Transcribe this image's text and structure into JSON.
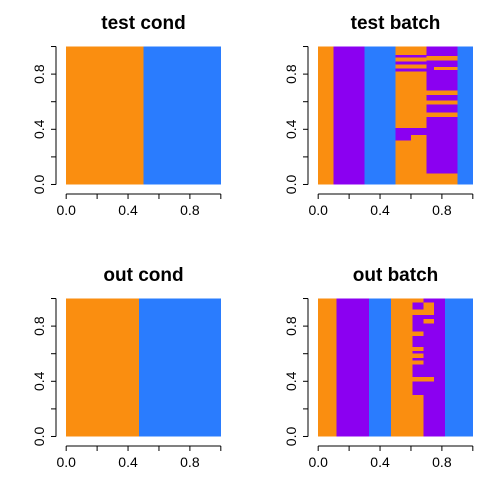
{
  "chart_data": [
    {
      "type": "heatmap",
      "title": "test cond",
      "xlim": [
        0,
        1
      ],
      "ylim": [
        0,
        1
      ],
      "x_ticks": [
        "0.0",
        "0.4",
        "0.8"
      ],
      "y_ticks": [
        "0.0",
        "0.4",
        "0.8"
      ],
      "colors": {
        "orange": "#fa8e10",
        "blue": "#2a7cfe"
      },
      "grid": "1 row x 2 column bands",
      "rects": [
        {
          "x": [
            0.0,
            0.5
          ],
          "y": [
            0.0,
            1.0
          ],
          "color": "orange"
        },
        {
          "x": [
            0.5,
            1.0
          ],
          "y": [
            0.0,
            1.0
          ],
          "color": "blue"
        }
      ]
    },
    {
      "type": "heatmap",
      "title": "test batch",
      "xlim": [
        0,
        1
      ],
      "ylim": [
        0,
        1
      ],
      "x_ticks": [
        "0.0",
        "0.4",
        "0.8"
      ],
      "y_ticks": [
        "0.0",
        "0.4",
        "0.8"
      ],
      "colors": {
        "orange": "#fa8e10",
        "purple": "#8b00f1",
        "blue": "#2a7cfe"
      },
      "rects": [
        {
          "x": [
            0.0,
            0.1
          ],
          "y": [
            0.0,
            1.0
          ],
          "color": "orange"
        },
        {
          "x": [
            0.1,
            0.3
          ],
          "y": [
            0.0,
            1.0
          ],
          "color": "purple"
        },
        {
          "x": [
            0.3,
            0.5
          ],
          "y": [
            0.0,
            1.0
          ],
          "color": "blue"
        },
        {
          "x": [
            0.5,
            0.7
          ],
          "y": [
            0.0,
            1.0
          ],
          "color": "orange"
        },
        {
          "x": [
            0.7,
            0.9
          ],
          "y": [
            0.0,
            1.0
          ],
          "color": "purple"
        },
        {
          "x": [
            0.9,
            1.0
          ],
          "y": [
            0.0,
            1.0
          ],
          "color": "blue"
        },
        {
          "x": [
            0.5,
            0.7
          ],
          "y": [
            0.92,
            0.94
          ],
          "color": "purple"
        },
        {
          "x": [
            0.5,
            0.7
          ],
          "y": [
            0.87,
            0.89
          ],
          "color": "purple"
        },
        {
          "x": [
            0.5,
            0.7
          ],
          "y": [
            0.82,
            0.84
          ],
          "color": "purple"
        },
        {
          "x": [
            0.5,
            0.7
          ],
          "y": [
            0.36,
            0.41
          ],
          "color": "purple"
        },
        {
          "x": [
            0.5,
            0.6
          ],
          "y": [
            0.32,
            0.36
          ],
          "color": "purple"
        },
        {
          "x": [
            0.7,
            0.9
          ],
          "y": [
            0.9,
            0.93
          ],
          "color": "orange"
        },
        {
          "x": [
            0.75,
            0.9
          ],
          "y": [
            0.83,
            0.85
          ],
          "color": "orange"
        },
        {
          "x": [
            0.7,
            0.9
          ],
          "y": [
            0.65,
            0.68
          ],
          "color": "orange"
        },
        {
          "x": [
            0.7,
            0.9
          ],
          "y": [
            0.58,
            0.61
          ],
          "color": "orange"
        },
        {
          "x": [
            0.7,
            0.9
          ],
          "y": [
            0.49,
            0.52
          ],
          "color": "orange"
        },
        {
          "x": [
            0.7,
            0.9
          ],
          "y": [
            0.0,
            0.08
          ],
          "color": "orange"
        }
      ]
    },
    {
      "type": "heatmap",
      "title": "out cond",
      "xlim": [
        0,
        1
      ],
      "ylim": [
        0,
        1
      ],
      "x_ticks": [
        "0.0",
        "0.4",
        "0.8"
      ],
      "y_ticks": [
        "0.0",
        "0.4",
        "0.8"
      ],
      "colors": {
        "orange": "#fa8e10",
        "blue": "#2a7cfe"
      },
      "rects": [
        {
          "x": [
            0.0,
            0.47
          ],
          "y": [
            0.0,
            1.0
          ],
          "color": "orange"
        },
        {
          "x": [
            0.47,
            1.0
          ],
          "y": [
            0.0,
            1.0
          ],
          "color": "blue"
        }
      ]
    },
    {
      "type": "heatmap",
      "title": "out batch",
      "xlim": [
        0,
        1
      ],
      "ylim": [
        0,
        1
      ],
      "x_ticks": [
        "0.0",
        "0.4",
        "0.8"
      ],
      "y_ticks": [
        "0.0",
        "0.4",
        "0.8"
      ],
      "colors": {
        "orange": "#fa8e10",
        "purple": "#8b00f1",
        "blue": "#2a7cfe"
      },
      "rects": [
        {
          "x": [
            0.0,
            0.12
          ],
          "y": [
            0.0,
            1.0
          ],
          "color": "orange"
        },
        {
          "x": [
            0.12,
            0.33
          ],
          "y": [
            0.0,
            1.0
          ],
          "color": "purple"
        },
        {
          "x": [
            0.33,
            0.47
          ],
          "y": [
            0.0,
            1.0
          ],
          "color": "blue"
        },
        {
          "x": [
            0.47,
            0.61
          ],
          "y": [
            0.0,
            1.0
          ],
          "color": "orange"
        },
        {
          "x": [
            0.61,
            0.82
          ],
          "y": [
            0.0,
            1.0
          ],
          "color": "purple"
        },
        {
          "x": [
            0.82,
            1.0
          ],
          "y": [
            0.0,
            1.0
          ],
          "color": "blue"
        },
        {
          "x": [
            0.61,
            0.68
          ],
          "y": [
            0.97,
            1.0
          ],
          "color": "orange"
        },
        {
          "x": [
            0.68,
            0.75
          ],
          "y": [
            0.92,
            0.97
          ],
          "color": "orange"
        },
        {
          "x": [
            0.61,
            0.75
          ],
          "y": [
            0.88,
            0.92
          ],
          "color": "orange"
        },
        {
          "x": [
            0.68,
            0.75
          ],
          "y": [
            0.82,
            0.85
          ],
          "color": "orange"
        },
        {
          "x": [
            0.61,
            0.68
          ],
          "y": [
            0.73,
            0.76
          ],
          "color": "orange"
        },
        {
          "x": [
            0.61,
            0.68
          ],
          "y": [
            0.62,
            0.65
          ],
          "color": "orange"
        },
        {
          "x": [
            0.61,
            0.68
          ],
          "y": [
            0.57,
            0.6
          ],
          "color": "orange"
        },
        {
          "x": [
            0.61,
            0.68
          ],
          "y": [
            0.52,
            0.55
          ],
          "color": "orange"
        },
        {
          "x": [
            0.61,
            0.75
          ],
          "y": [
            0.4,
            0.43
          ],
          "color": "orange"
        },
        {
          "x": [
            0.61,
            0.68
          ],
          "y": [
            0.0,
            0.3
          ],
          "color": "orange"
        }
      ]
    }
  ]
}
